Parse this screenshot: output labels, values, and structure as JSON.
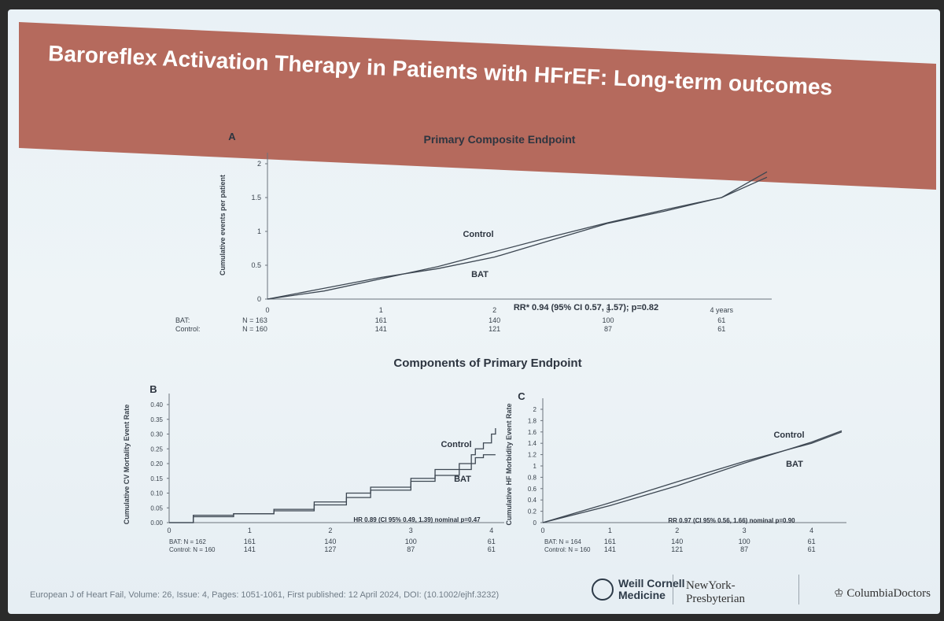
{
  "slide": {
    "title": "Baroreflex Activation Therapy in Patients with HFrEF: Long-term outcomes",
    "section_label": "Components of Primary Endpoint",
    "citation": "European J of Heart Fail, Volume: 26, Issue: 4, Pages: 1051-1061, First published: 12 April 2024, DOI: (10.1002/ejhf.3232)"
  },
  "logos": {
    "wcm_line1": "Weill Cornell",
    "wcm_line2": "Medicine",
    "nyp_line1": "NewYork-",
    "nyp_line2": "Presbyterian",
    "cd": "ColumbiaDoctors"
  },
  "colors": {
    "title_bar": "#b56a5d",
    "line": "#3d4752",
    "background": "#eaf1f5"
  },
  "chart_data": [
    {
      "panel": "A",
      "type": "line",
      "title": "Primary Composite Endpoint",
      "ylabel": "Cumulative events per patient",
      "ylim": [
        0,
        2
      ],
      "yticks": [
        "0",
        "0.5",
        "1",
        "1.5",
        "2"
      ],
      "xticks": [
        "0",
        "1",
        "2",
        "3",
        "4 years"
      ],
      "annotation": "RR* 0.94 (95% CI 0.57, 1.57); p=0.82",
      "series": [
        {
          "name": "Control",
          "x": [
            0,
            0.5,
            1,
            1.5,
            2,
            2.5,
            3,
            3.5,
            4,
            4.4
          ],
          "y": [
            0,
            0.12,
            0.3,
            0.48,
            0.7,
            0.92,
            1.13,
            1.32,
            1.5,
            1.8
          ]
        },
        {
          "name": "BAT",
          "x": [
            0,
            0.5,
            1,
            1.5,
            2,
            2.5,
            3,
            3.5,
            4,
            4.4
          ],
          "y": [
            0,
            0.16,
            0.32,
            0.45,
            0.62,
            0.87,
            1.12,
            1.3,
            1.5,
            1.88
          ]
        }
      ],
      "risk_table": {
        "rows": [
          {
            "label": "BAT:",
            "n": "N = 163",
            "values": [
              "161",
              "140",
              "100",
              "61"
            ]
          },
          {
            "label": "Control:",
            "n": "N = 160",
            "values": [
              "141",
              "121",
              "87",
              "61"
            ]
          }
        ]
      }
    },
    {
      "panel": "B",
      "type": "line",
      "ylabel": "Cumulative CV Mortality Event Rate",
      "ylim": [
        0,
        0.4
      ],
      "yticks": [
        "0.00",
        "0.05",
        "0.10",
        "0.15",
        "0.20",
        "0.25",
        "0.30",
        "0.35",
        "0.40"
      ],
      "xticks": [
        "0",
        "1",
        "2",
        "3",
        "4"
      ],
      "annotation": "HR 0.89 (CI 95% 0.49, 1.39) nominal p=0.47",
      "series": [
        {
          "name": "Control",
          "x": [
            0,
            0.3,
            0.8,
            1.3,
            1.8,
            2.2,
            2.5,
            3.0,
            3.3,
            3.6,
            3.75,
            3.8,
            3.9,
            4.0,
            4.05
          ],
          "y": [
            0,
            0.02,
            0.03,
            0.045,
            0.07,
            0.1,
            0.12,
            0.15,
            0.18,
            0.2,
            0.23,
            0.25,
            0.27,
            0.3,
            0.32
          ]
        },
        {
          "name": "BAT",
          "x": [
            0,
            0.3,
            0.8,
            1.3,
            1.8,
            2.2,
            2.5,
            3.0,
            3.3,
            3.6,
            3.75,
            3.8,
            3.9,
            4.05
          ],
          "y": [
            0,
            0.025,
            0.03,
            0.04,
            0.06,
            0.085,
            0.11,
            0.14,
            0.16,
            0.18,
            0.2,
            0.22,
            0.23,
            0.23
          ]
        }
      ],
      "risk_table": {
        "rows": [
          {
            "label": "BAT: N = 162",
            "values": [
              "161",
              "140",
              "100",
              "61"
            ]
          },
          {
            "label": "Control: N = 160",
            "values": [
              "141",
              "127",
              "87",
              "61"
            ]
          }
        ]
      }
    },
    {
      "panel": "C",
      "type": "line",
      "ylabel": "Cumulative HF Morbidity Event Rate",
      "ylim": [
        0,
        2
      ],
      "yticks": [
        "0",
        "0.2",
        "0.4",
        "0.6",
        "0.8",
        "1",
        "1.2",
        "1.4",
        "1.6",
        "1.8",
        "2"
      ],
      "xticks": [
        "0",
        "1",
        "2",
        "3",
        "4"
      ],
      "annotation": "RR 0.97 (CI 95% 0.56, 1.66) nominal p=0.90",
      "series": [
        {
          "name": "Control",
          "x": [
            0,
            1,
            2,
            3,
            4,
            4.45
          ],
          "y": [
            0,
            0.35,
            0.72,
            1.08,
            1.4,
            1.6
          ]
        },
        {
          "name": "BAT",
          "x": [
            0,
            1,
            2,
            3,
            4,
            4.45
          ],
          "y": [
            0,
            0.3,
            0.65,
            1.05,
            1.42,
            1.62
          ]
        }
      ],
      "risk_table": {
        "rows": [
          {
            "label": "BAT: N = 164",
            "values": [
              "161",
              "140",
              "100",
              "61"
            ]
          },
          {
            "label": "Control: N = 160",
            "values": [
              "141",
              "121",
              "87",
              "61"
            ]
          }
        ]
      }
    }
  ]
}
